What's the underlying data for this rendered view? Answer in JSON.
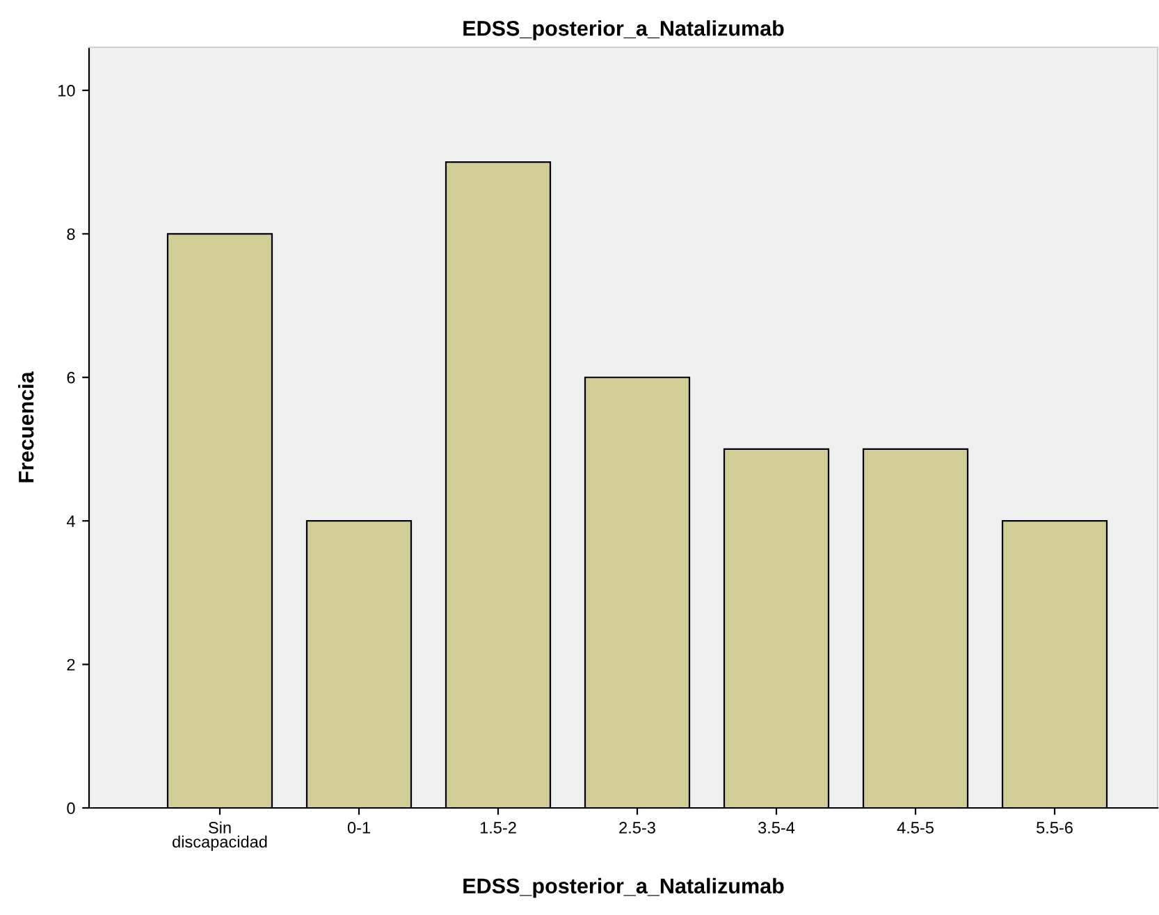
{
  "chart_data": {
    "type": "bar",
    "title": "EDSS_posterior_a_Natalizumab",
    "xlabel": "EDSS_posterior_a_Natalizumab",
    "ylabel": "Frecuencia",
    "categories": [
      "Sin\ndiscapacidad",
      "0-1",
      "1.5-2",
      "2.5-3",
      "3.5-4",
      "4.5-5",
      "5.5-6"
    ],
    "values": [
      8,
      4,
      9,
      6,
      5,
      5,
      4
    ],
    "color": "#d3ce98",
    "ylim": [
      0,
      10.6
    ],
    "yticks": [
      0,
      2,
      4,
      6,
      8,
      10
    ],
    "grid": false,
    "legend": false
  }
}
